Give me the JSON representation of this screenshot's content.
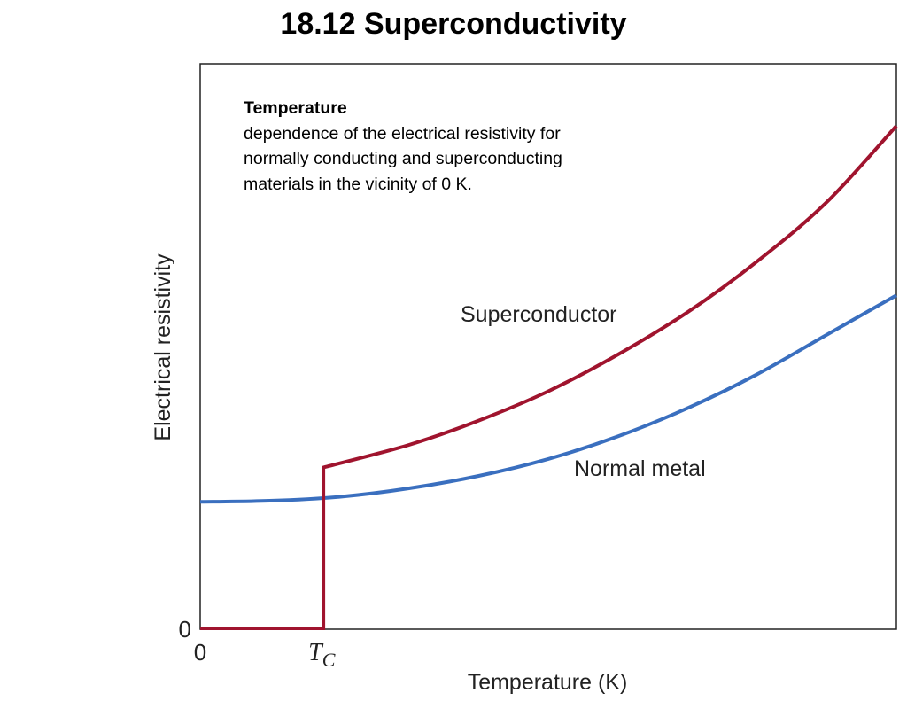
{
  "title": "18.12 Superconductivity",
  "caption": {
    "heading": "Temperature",
    "body": "dependence of the electrical resistivity for normally conducting and superconducting materials in the vicinity of 0 K."
  },
  "chart_data": {
    "type": "line",
    "title": "",
    "xlabel": "Temperature (K)",
    "ylabel": "Electrical resistivity",
    "x_ticks": [
      {
        "x": 0,
        "label": "0"
      },
      {
        "x": 0.177,
        "label": "T"
      }
    ],
    "x_tick_subscript": "C",
    "y_ticks": [
      {
        "y": 0,
        "label": "0"
      }
    ],
    "xlim": [
      0,
      1
    ],
    "ylim": [
      0,
      1
    ],
    "grid": false,
    "series": [
      {
        "name": "Superconductor",
        "color": "#a0142e",
        "points": [
          {
            "x": 0.0,
            "y": 0.0
          },
          {
            "x": 0.177,
            "y": 0.0
          },
          {
            "x": 0.177,
            "y": 0.285
          },
          {
            "x": 0.3,
            "y": 0.325
          },
          {
            "x": 0.4,
            "y": 0.368
          },
          {
            "x": 0.5,
            "y": 0.42
          },
          {
            "x": 0.6,
            "y": 0.485
          },
          {
            "x": 0.7,
            "y": 0.56
          },
          {
            "x": 0.8,
            "y": 0.65
          },
          {
            "x": 0.9,
            "y": 0.755
          },
          {
            "x": 1.0,
            "y": 0.89
          }
        ]
      },
      {
        "name": "Normal metal",
        "color": "#3a6fbf",
        "points": [
          {
            "x": 0.0,
            "y": 0.224
          },
          {
            "x": 0.1,
            "y": 0.226
          },
          {
            "x": 0.2,
            "y": 0.233
          },
          {
            "x": 0.3,
            "y": 0.248
          },
          {
            "x": 0.4,
            "y": 0.27
          },
          {
            "x": 0.5,
            "y": 0.3
          },
          {
            "x": 0.6,
            "y": 0.34
          },
          {
            "x": 0.7,
            "y": 0.39
          },
          {
            "x": 0.8,
            "y": 0.45
          },
          {
            "x": 0.9,
            "y": 0.52
          },
          {
            "x": 1.0,
            "y": 0.59
          }
        ]
      }
    ]
  }
}
